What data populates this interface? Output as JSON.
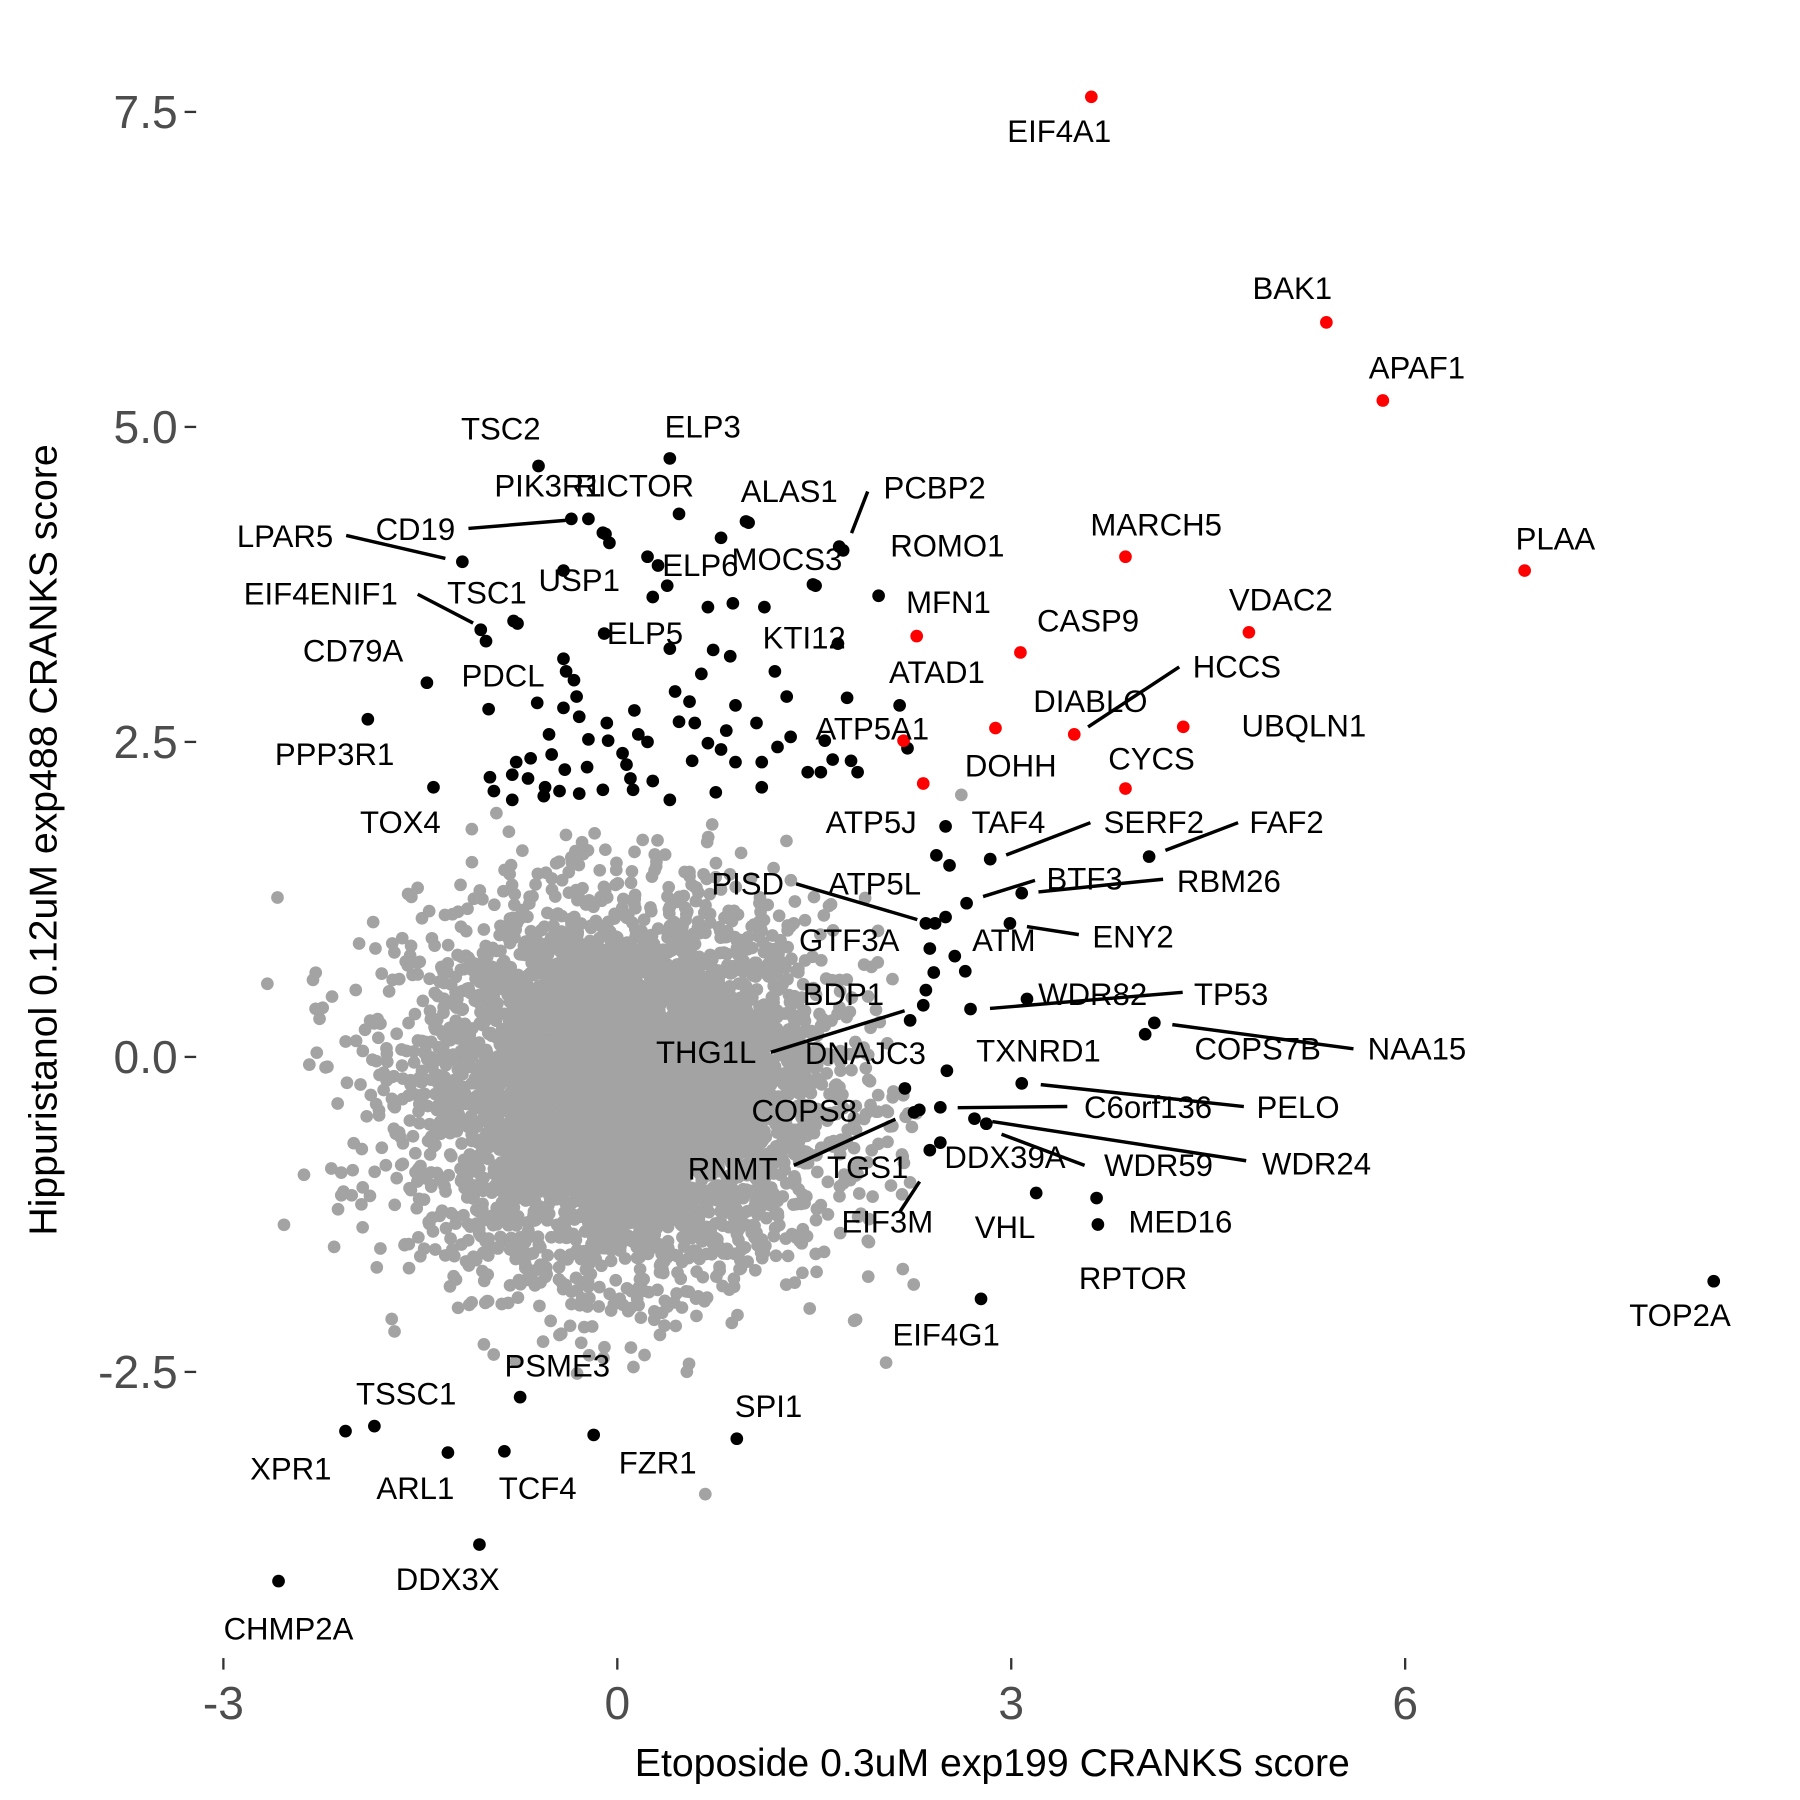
{
  "chart_data": {
    "type": "scatter",
    "title": "",
    "xlabel": "Etoposide 0.3uM exp199 CRANKS score",
    "ylabel": "Hippuristanol 0.12uM exp488 CRANKS score",
    "xlim": [
      -3.4,
      9.0
    ],
    "ylim": [
      -4.7,
      7.9
    ],
    "x_ticks": [
      -3,
      0,
      3,
      6
    ],
    "x_tick_labels": [
      "-3",
      "0",
      "3",
      "6"
    ],
    "y_ticks": [
      -2.5,
      0,
      2.5,
      5,
      7.5
    ],
    "y_tick_labels": [
      "-2.5",
      "0.0",
      "2.5",
      "5.0",
      "7.5"
    ],
    "grid": false,
    "colors": {
      "highlight": "#ff0000",
      "hit": "#000000",
      "background": "#a3a3a3"
    },
    "highlighted_genes": [
      {
        "gene": "EIF4A1",
        "x": 3.61,
        "y": 7.62
      },
      {
        "gene": "BAK1",
        "x": 5.4,
        "y": 5.83
      },
      {
        "gene": "APAF1",
        "x": 5.83,
        "y": 5.21
      },
      {
        "gene": "PLAA",
        "x": 6.91,
        "y": 3.86
      },
      {
        "gene": "MARCH5",
        "x": 3.87,
        "y": 3.97
      },
      {
        "gene": "VDAC2",
        "x": 4.81,
        "y": 3.37
      },
      {
        "gene": "CASP9",
        "x": 3.07,
        "y": 3.21
      },
      {
        "gene": "MFN1",
        "x": 2.28,
        "y": 3.34
      },
      {
        "gene": "DIABLO",
        "x": 2.88,
        "y": 2.61
      },
      {
        "gene": "HCCS",
        "x": 3.48,
        "y": 2.56
      },
      {
        "gene": "UBQLN1",
        "x": 4.31,
        "y": 2.62
      },
      {
        "gene": "ATP5A1",
        "x": 2.18,
        "y": 2.51
      },
      {
        "gene": "DOHH",
        "x": 2.33,
        "y": 2.17
      },
      {
        "gene": "CYCS",
        "x": 3.87,
        "y": 2.13
      }
    ],
    "labeled_hits": [
      {
        "gene": "TSC2",
        "x": -0.6,
        "y": 4.69
      },
      {
        "gene": "ELP3",
        "x": 0.4,
        "y": 4.75
      },
      {
        "gene": "PIK3R1",
        "x": -0.35,
        "y": 4.27
      },
      {
        "gene": "CD19",
        "x": -0.22,
        "y": 4.27
      },
      {
        "gene": "RICTOR",
        "x": -0.09,
        "y": 4.15
      },
      {
        "gene": "ALAS1",
        "x": 1.0,
        "y": 4.24
      },
      {
        "gene": "PCBP2",
        "x": 1.72,
        "y": 4.02
      },
      {
        "gene": "ROMO1",
        "x": 1.99,
        "y": 3.66
      },
      {
        "gene": "LPAR5",
        "x": -1.18,
        "y": 3.93
      },
      {
        "gene": "USP1",
        "x": -0.41,
        "y": 3.86
      },
      {
        "gene": "ELP6",
        "x": 0.31,
        "y": 3.9
      },
      {
        "gene": "MOCS3",
        "x": 1.51,
        "y": 3.74
      },
      {
        "gene": "EIF4ENIF1",
        "x": -1.04,
        "y": 3.39
      },
      {
        "gene": "TSC1",
        "x": -0.76,
        "y": 3.44
      },
      {
        "gene": "CD79A",
        "x": -1.45,
        "y": 2.97
      },
      {
        "gene": "ELP5",
        "x": -0.1,
        "y": 3.36
      },
      {
        "gene": "KTI12",
        "x": 1.2,
        "y": 3.06
      },
      {
        "gene": "PDCL",
        "x": -0.98,
        "y": 2.76
      },
      {
        "gene": "ATAD1",
        "x": 2.15,
        "y": 2.79
      },
      {
        "gene": "PPP3R1",
        "x": -1.9,
        "y": 2.68
      },
      {
        "gene": "TOX4",
        "x": -1.4,
        "y": 2.14
      },
      {
        "gene": "ATP5J",
        "x": 2.43,
        "y": 1.6
      },
      {
        "gene": "TAF4",
        "x": 2.5,
        "y": 1.83
      },
      {
        "gene": "SERF2",
        "x": 2.84,
        "y": 1.57
      },
      {
        "gene": "FAF2",
        "x": 4.05,
        "y": 1.59
      },
      {
        "gene": "RBM26",
        "x": 3.08,
        "y": 1.3
      },
      {
        "gene": "BTF3",
        "x": 2.66,
        "y": 1.22
      },
      {
        "gene": "PISD",
        "x": 2.35,
        "y": 1.06
      },
      {
        "gene": "ATP5L",
        "x": 2.42,
        "y": 1.06
      },
      {
        "gene": "GTF3A",
        "x": 2.5,
        "y": 1.11
      },
      {
        "gene": "ENY2",
        "x": 2.99,
        "y": 1.06
      },
      {
        "gene": "ATM",
        "x": 2.57,
        "y": 0.8
      },
      {
        "gene": "WDR82",
        "x": 3.12,
        "y": 0.46
      },
      {
        "gene": "TP53",
        "x": 2.69,
        "y": 0.38
      },
      {
        "gene": "BDP1",
        "x": 2.35,
        "y": 0.53
      },
      {
        "gene": "THG1L",
        "x": 2.23,
        "y": 0.29
      },
      {
        "gene": "DNAJC3",
        "x": 2.33,
        "y": 0.41
      },
      {
        "gene": "COPS7B",
        "x": 4.02,
        "y": 0.18
      },
      {
        "gene": "NAA15",
        "x": 4.09,
        "y": 0.27
      },
      {
        "gene": "TXNRD1",
        "x": 2.51,
        "y": -0.11
      },
      {
        "gene": "PELO",
        "x": 3.08,
        "y": -0.21
      },
      {
        "gene": "C6orf136",
        "x": 2.46,
        "y": -0.4
      },
      {
        "gene": "COPS8",
        "x": 2.19,
        "y": -0.25
      },
      {
        "gene": "RNMT",
        "x": 2.26,
        "y": -0.44
      },
      {
        "gene": "TGS1",
        "x": 2.3,
        "y": -0.42
      },
      {
        "gene": "DDX39A",
        "x": 2.46,
        "y": -0.68
      },
      {
        "gene": "WDR59",
        "x": 2.72,
        "y": -0.49
      },
      {
        "gene": "WDR24",
        "x": 2.81,
        "y": -0.53
      },
      {
        "gene": "EIF3M",
        "x": 2.38,
        "y": -0.74
      },
      {
        "gene": "VHL",
        "x": 3.19,
        "y": -1.08
      },
      {
        "gene": "MED16",
        "x": 3.66,
        "y": -1.33
      },
      {
        "gene": "RPTOR",
        "x": 3.65,
        "y": -1.12
      },
      {
        "gene": "EIF4G1",
        "x": 2.77,
        "y": -1.92
      },
      {
        "gene": "TOP2A",
        "x": 8.35,
        "y": -1.78
      },
      {
        "gene": "PSME3",
        "x": -0.74,
        "y": -2.7
      },
      {
        "gene": "TSSC1",
        "x": -1.85,
        "y": -2.93
      },
      {
        "gene": "XPR1",
        "x": -2.07,
        "y": -2.97
      },
      {
        "gene": "ARL1",
        "x": -1.29,
        "y": -3.14
      },
      {
        "gene": "TCF4",
        "x": -0.86,
        "y": -3.13
      },
      {
        "gene": "FZR1",
        "x": -0.18,
        "y": -3.0
      },
      {
        "gene": "SPI1",
        "x": 0.91,
        "y": -3.03
      },
      {
        "gene": "DDX3X",
        "x": -1.05,
        "y": -3.87
      },
      {
        "gene": "CHMP2A",
        "x": -2.58,
        "y": -4.16
      }
    ],
    "unlabeled_hits": [
      [
        0.47,
        4.31
      ],
      [
        0.98,
        4.25
      ],
      [
        -0.11,
        4.16
      ],
      [
        -0.06,
        4.08
      ],
      [
        0.23,
        3.97
      ],
      [
        0.38,
        3.74
      ],
      [
        0.27,
        3.65
      ],
      [
        0.79,
        4.12
      ],
      [
        1.69,
        4.05
      ],
      [
        1.49,
        3.75
      ],
      [
        0.69,
        3.57
      ],
      [
        0.88,
        3.6
      ],
      [
        1.12,
        3.57
      ],
      [
        -0.79,
        3.46
      ],
      [
        -1.0,
        3.3
      ],
      [
        0.4,
        3.24
      ],
      [
        0.73,
        3.23
      ],
      [
        0.86,
        3.18
      ],
      [
        1.68,
        3.28
      ],
      [
        -0.41,
        3.16
      ],
      [
        -0.39,
        3.06
      ],
      [
        -0.33,
        2.99
      ],
      [
        0.64,
        3.04
      ],
      [
        0.44,
        2.9
      ],
      [
        0.55,
        2.82
      ],
      [
        1.29,
        2.86
      ],
      [
        1.75,
        2.85
      ],
      [
        0.9,
        2.79
      ],
      [
        -0.31,
        2.86
      ],
      [
        -0.61,
        2.81
      ],
      [
        -0.41,
        2.77
      ],
      [
        -0.29,
        2.7
      ],
      [
        0.13,
        2.75
      ],
      [
        -0.08,
        2.65
      ],
      [
        0.47,
        2.66
      ],
      [
        0.59,
        2.65
      ],
      [
        1.06,
        2.65
      ],
      [
        -0.52,
        2.56
      ],
      [
        -0.22,
        2.52
      ],
      [
        -0.07,
        2.51
      ],
      [
        0.16,
        2.56
      ],
      [
        0.23,
        2.5
      ],
      [
        0.83,
        2.59
      ],
      [
        0.69,
        2.49
      ],
      [
        1.32,
        2.54
      ],
      [
        1.58,
        2.51
      ],
      [
        1.22,
        2.46
      ],
      [
        2.21,
        2.45
      ],
      [
        -0.5,
        2.4
      ],
      [
        0.04,
        2.41
      ],
      [
        0.79,
        2.44
      ],
      [
        -0.66,
        2.37
      ],
      [
        -0.77,
        2.34
      ],
      [
        0.07,
        2.32
      ],
      [
        0.57,
        2.35
      ],
      [
        0.9,
        2.34
      ],
      [
        1.1,
        2.34
      ],
      [
        1.64,
        2.36
      ],
      [
        1.78,
        2.35
      ],
      [
        -0.23,
        2.3
      ],
      [
        -0.4,
        2.28
      ],
      [
        1.45,
        2.26
      ],
      [
        1.55,
        2.26
      ],
      [
        1.83,
        2.26
      ],
      [
        -0.8,
        2.24
      ],
      [
        -0.97,
        2.22
      ],
      [
        -0.68,
        2.21
      ],
      [
        0.1,
        2.21
      ],
      [
        0.27,
        2.19
      ],
      [
        -0.55,
        2.14
      ],
      [
        -0.94,
        2.11
      ],
      [
        -0.44,
        2.11
      ],
      [
        -0.29,
        2.09
      ],
      [
        -0.11,
        2.12
      ],
      [
        0.12,
        2.12
      ],
      [
        0.75,
        2.1
      ],
      [
        1.1,
        2.14
      ],
      [
        -0.8,
        2.04
      ],
      [
        -0.56,
        2.07
      ],
      [
        0.4,
        2.04
      ],
      [
        2.53,
        1.52
      ],
      [
        2.38,
        0.86
      ],
      [
        2.65,
        0.68
      ],
      [
        2.41,
        0.67
      ]
    ],
    "outlying_background": [
      [
        0.67,
        -3.47
      ],
      [
        2.62,
        2.08
      ]
    ]
  }
}
